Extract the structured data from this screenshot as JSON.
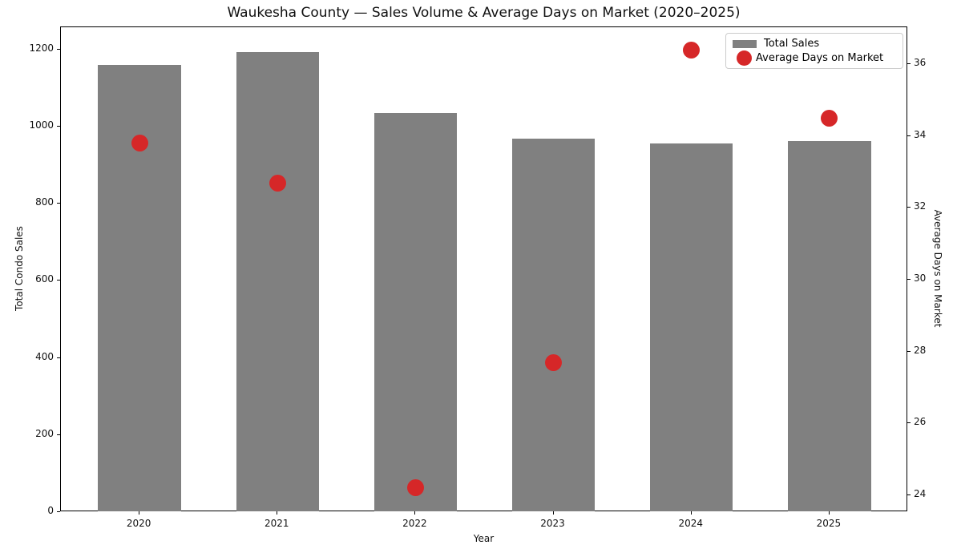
{
  "chart_data": {
    "type": "combo",
    "title": "Waukesha County — Sales Volume & Average Days on Market (2020–2025)",
    "xlabel": "Year",
    "ylabel_left": "Total Condo Sales",
    "ylabel_right": "Average Days on Market",
    "categories": [
      "2020",
      "2021",
      "2022",
      "2023",
      "2024",
      "2025"
    ],
    "series": [
      {
        "name": "Total Sales",
        "type": "bar",
        "axis": "left",
        "color": "#808080",
        "values": [
          1160,
          1194,
          1036,
          970,
          956,
          963
        ]
      },
      {
        "name": "Average Days on Market",
        "type": "scatter",
        "axis": "right",
        "color": "#d62728",
        "values": [
          33.8,
          32.7,
          24.2,
          27.7,
          36.4,
          34.5
        ]
      }
    ],
    "y_left": {
      "lim": [
        0,
        1258
      ],
      "ticks": [
        0,
        200,
        400,
        600,
        800,
        1000,
        1200
      ]
    },
    "y_right": {
      "lim": [
        23.53,
        37.03
      ],
      "ticks": [
        24,
        26,
        28,
        30,
        32,
        34,
        36
      ]
    },
    "x_margin": 0.57,
    "bar_width_frac": 0.6,
    "marker_size_px": 21,
    "grid": false,
    "legend": {
      "position": "upper right"
    }
  }
}
